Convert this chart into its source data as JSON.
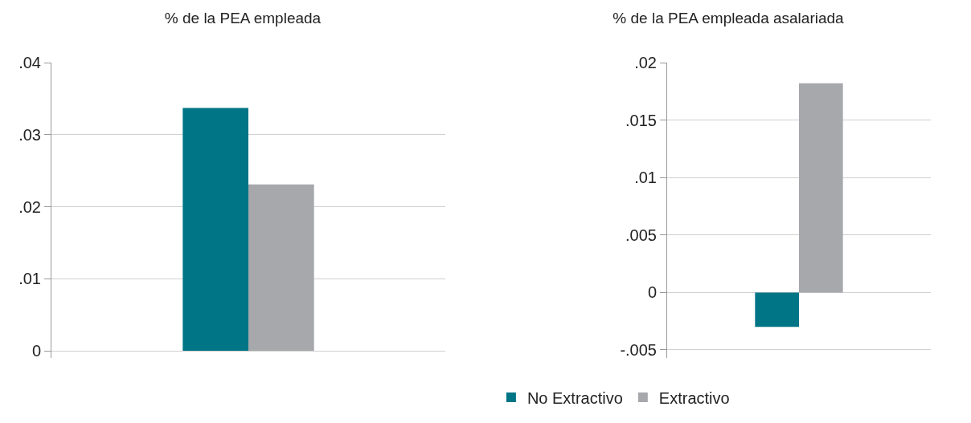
{
  "chart_data": [
    {
      "type": "bar",
      "title": "% de la PEA empleada",
      "categories": [
        null
      ],
      "series": [
        {
          "color": "#007586",
          "values": [
            0.0337
          ]
        },
        {
          "color": "#a7a8ac",
          "values": [
            0.0231
          ]
        }
      ],
      "ylim": [
        -0.001,
        0.04
      ],
      "yticks": [
        {
          "value": 0,
          "label": "0"
        },
        {
          "value": 0.01,
          "label": ".01"
        },
        {
          "value": 0.02,
          "label": ".02"
        },
        {
          "value": 0.03,
          "label": ".03"
        },
        {
          "value": 0.04,
          "label": ".04"
        }
      ],
      "grid": "y"
    },
    {
      "type": "bar",
      "title": "% de la PEA empleada asalariada",
      "categories": [
        null
      ],
      "series": [
        {
          "name": "No Extractivo",
          "color": "#007586",
          "values": [
            -0.003
          ]
        },
        {
          "name": "Extractivo",
          "color": "#a7a8ac",
          "values": [
            0.0182
          ]
        }
      ],
      "ylim": [
        -0.0057,
        0.02
      ],
      "yticks": [
        {
          "value": -0.005,
          "label": "-.005"
        },
        {
          "value": 0,
          "label": "0"
        },
        {
          "value": 0.005,
          "label": ".005"
        },
        {
          "value": 0.01,
          "label": ".01"
        },
        {
          "value": 0.015,
          "label": ".015"
        },
        {
          "value": 0.02,
          "label": ".02"
        }
      ],
      "grid": "y",
      "legend": "bottom"
    }
  ]
}
